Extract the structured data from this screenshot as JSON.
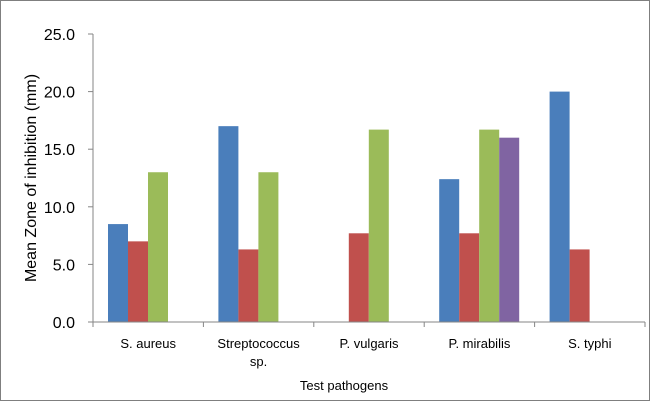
{
  "chart_data": {
    "type": "bar",
    "title": "",
    "xlabel": "Test pathogens",
    "ylabel": "Mean Zone of inhibition (mm)",
    "ylim": [
      0,
      25
    ],
    "yticks": [
      "0.0",
      "5.0",
      "10.0",
      "15.0",
      "20.0",
      "25.0"
    ],
    "grid": false,
    "legend": "none",
    "categories": [
      [
        "S. aureus"
      ],
      [
        "Streptococcus",
        "sp."
      ],
      [
        "P. vulgaris"
      ],
      [
        "P. mirabilis"
      ],
      [
        "S. typhi"
      ]
    ],
    "series": [
      {
        "color": "#4a7ebb",
        "values": [
          8.5,
          17.0,
          null,
          12.4,
          20.0
        ]
      },
      {
        "color": "#c0504d",
        "values": [
          7.0,
          6.3,
          7.7,
          7.7,
          6.3
        ]
      },
      {
        "color": "#9bbb59",
        "values": [
          13.0,
          13.0,
          16.7,
          16.7,
          null
        ]
      },
      {
        "color": "#8064a2",
        "values": [
          null,
          null,
          null,
          16.0,
          null
        ]
      }
    ]
  }
}
